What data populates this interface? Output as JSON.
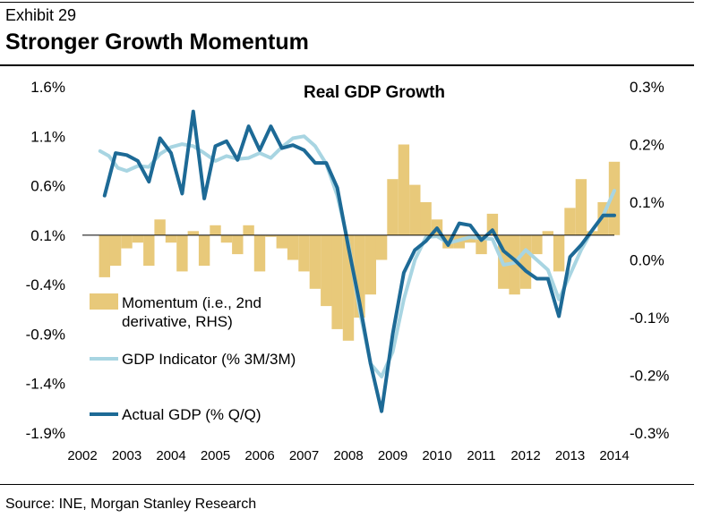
{
  "header": {
    "exhibit_label": "Exhibit 29",
    "headline": "Stronger Growth Momentum"
  },
  "footer": {
    "source": "Source: INE, Morgan Stanley Research"
  },
  "colors": {
    "momentum_fill": "#e8c97a",
    "gdp_indicator": "#a8d5e2",
    "actual_gdp": "#1d6a96",
    "axis": "#000000"
  },
  "chart_data": {
    "type": "line+bar",
    "title": "Real GDP Growth",
    "xlabel": "",
    "ylabel_left": "",
    "ylabel_right": "",
    "x_ticks": [
      "2002",
      "2003",
      "2004",
      "2005",
      "2006",
      "2007",
      "2008",
      "2009",
      "2010",
      "2011",
      "2012",
      "2013",
      "2014"
    ],
    "xlim": [
      2002,
      2014
    ],
    "left_axis": {
      "ylim": [
        -1.9,
        1.6
      ],
      "ticks": [
        1.6,
        1.1,
        0.6,
        0.1,
        -0.4,
        -0.9,
        -1.4,
        -1.9
      ],
      "tick_labels": [
        "1.6%",
        "1.1%",
        "0.6%",
        "0.1%",
        "-0.4%",
        "-0.9%",
        "-1.4%",
        "-1.9%"
      ]
    },
    "right_axis": {
      "ylim": [
        -0.3,
        0.3
      ],
      "ticks": [
        0.3,
        0.2,
        0.1,
        0.0,
        -0.1,
        -0.2,
        -0.3
      ],
      "tick_labels": [
        "0.3%",
        "0.2%",
        "0.1%",
        "0.0%",
        "-0.1%",
        "-0.2%",
        "-0.3%"
      ]
    },
    "legend": [
      {
        "name": "Momentum (i.e., 2nd",
        "name_line2": "derivative, RHS)",
        "style": "area"
      },
      {
        "name": "GDP Indicator (% 3M/3M)",
        "style": "line-light"
      },
      {
        "name": "Actual GDP (% Q/Q)",
        "style": "line-dark"
      }
    ],
    "series": [
      {
        "name": "Actual GDP (% Q/Q)",
        "axis": "left",
        "x": [
          2002.5,
          2002.75,
          2003.0,
          2003.25,
          2003.5,
          2003.75,
          2004.0,
          2004.25,
          2004.5,
          2004.75,
          2005.0,
          2005.25,
          2005.5,
          2005.75,
          2006.0,
          2006.25,
          2006.5,
          2006.75,
          2007.0,
          2007.25,
          2007.5,
          2007.75,
          2008.0,
          2008.25,
          2008.5,
          2008.75,
          2009.0,
          2009.25,
          2009.5,
          2009.75,
          2010.0,
          2010.25,
          2010.5,
          2010.75,
          2011.0,
          2011.25,
          2011.5,
          2011.75,
          2012.0,
          2012.25,
          2012.5,
          2012.75,
          2013.0,
          2013.25,
          2013.5,
          2013.75,
          2014.0
        ],
        "values": [
          0.5,
          0.93,
          0.91,
          0.85,
          0.64,
          1.08,
          0.93,
          0.52,
          1.35,
          0.47,
          1.0,
          1.05,
          0.86,
          1.2,
          0.96,
          1.2,
          0.98,
          1.01,
          0.96,
          0.83,
          0.83,
          0.58,
          -0.02,
          -0.58,
          -1.2,
          -1.68,
          -0.9,
          -0.28,
          -0.05,
          0.04,
          0.17,
          0.0,
          0.22,
          0.2,
          0.05,
          0.15,
          -0.06,
          -0.15,
          -0.26,
          -0.34,
          -0.34,
          -0.72,
          -0.12,
          0.0,
          0.15,
          0.3,
          0.3
        ]
      },
      {
        "name": "GDP Indicator (% 3M/3M)",
        "axis": "left",
        "x": [
          2002.4,
          2002.6,
          2002.8,
          2003.0,
          2003.25,
          2003.5,
          2003.75,
          2004.0,
          2004.25,
          2004.5,
          2004.75,
          2005.0,
          2005.25,
          2005.5,
          2005.75,
          2006.0,
          2006.25,
          2006.5,
          2006.75,
          2007.0,
          2007.25,
          2007.5,
          2007.75,
          2008.0,
          2008.25,
          2008.5,
          2008.75,
          2009.0,
          2009.25,
          2009.5,
          2009.75,
          2010.0,
          2010.25,
          2010.5,
          2010.75,
          2011.0,
          2011.25,
          2011.5,
          2011.75,
          2012.0,
          2012.25,
          2012.5,
          2012.75,
          2013.0,
          2013.25,
          2013.5,
          2013.75,
          2014.0
        ],
        "values": [
          0.95,
          0.9,
          0.78,
          0.75,
          0.8,
          0.79,
          0.92,
          0.99,
          1.02,
          1.0,
          0.93,
          0.85,
          0.9,
          0.87,
          0.88,
          0.93,
          0.88,
          0.99,
          1.08,
          1.1,
          1.0,
          0.82,
          0.5,
          0.02,
          -0.65,
          -1.2,
          -1.33,
          -1.08,
          -0.55,
          -0.15,
          0.08,
          0.09,
          0.02,
          0.05,
          0.08,
          0.07,
          0.06,
          -0.2,
          -0.18,
          -0.05,
          -0.15,
          -0.25,
          -0.55,
          -0.3,
          -0.05,
          0.15,
          0.3,
          0.55
        ]
      },
      {
        "name": "Momentum (i.e., 2nd derivative, RHS)",
        "axis": "right",
        "x": [
          2002.5,
          2002.75,
          2003.0,
          2003.25,
          2003.5,
          2003.75,
          2004.0,
          2004.25,
          2004.5,
          2004.75,
          2005.0,
          2005.25,
          2005.5,
          2005.75,
          2006.0,
          2006.25,
          2006.5,
          2006.75,
          2007.0,
          2007.25,
          2007.5,
          2007.75,
          2008.0,
          2008.25,
          2008.5,
          2008.75,
          2009.0,
          2009.25,
          2009.5,
          2009.75,
          2010.0,
          2010.25,
          2010.5,
          2010.75,
          2011.0,
          2011.25,
          2011.5,
          2011.75,
          2012.0,
          2012.25,
          2012.5,
          2012.75,
          2013.0,
          2013.25,
          2013.5,
          2013.75,
          2014.0
        ],
        "values": [
          -0.03,
          -0.01,
          0.02,
          0.03,
          -0.01,
          0.07,
          0.03,
          -0.02,
          0.05,
          -0.01,
          0.06,
          0.03,
          0.01,
          0.06,
          -0.02,
          0.04,
          0.02,
          0.0,
          -0.02,
          -0.05,
          -0.08,
          -0.12,
          -0.14,
          -0.1,
          -0.06,
          0.0,
          0.14,
          0.2,
          0.13,
          0.1,
          0.07,
          0.02,
          0.02,
          0.03,
          0.01,
          0.08,
          -0.05,
          -0.06,
          -0.05,
          0.01,
          0.05,
          -0.02,
          0.09,
          0.14,
          0.05,
          0.1,
          0.17
        ]
      }
    ]
  }
}
